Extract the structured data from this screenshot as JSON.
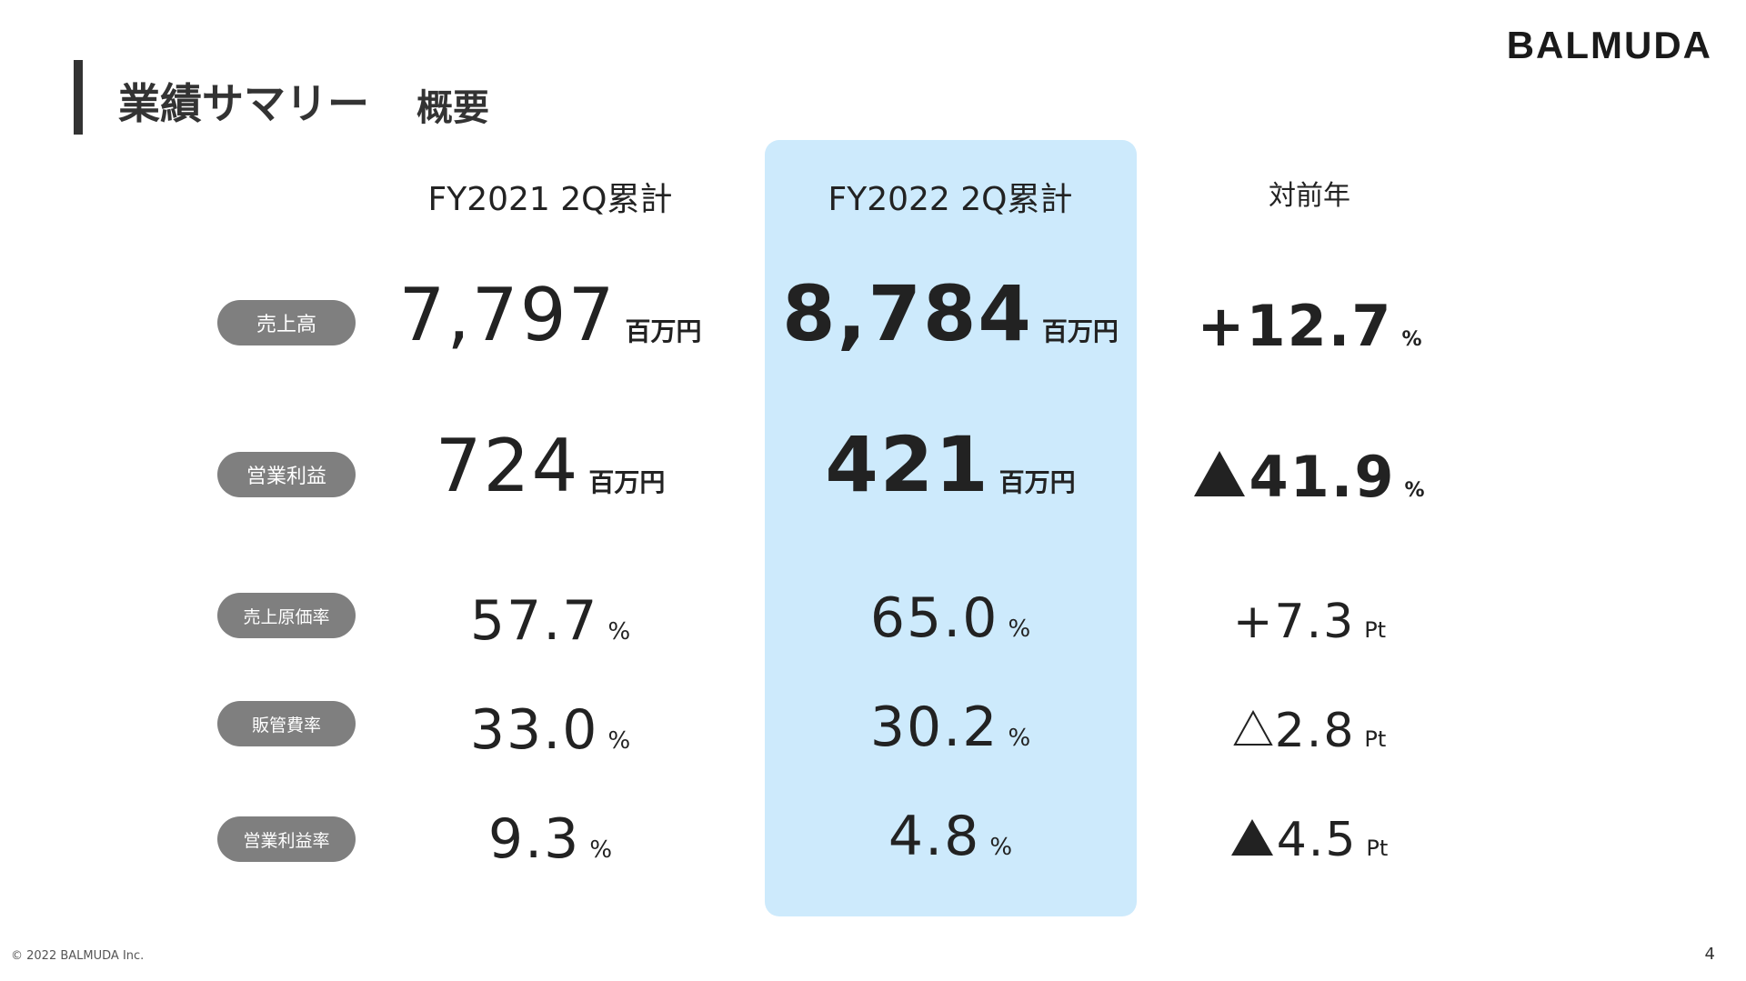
{
  "brand": "BALMUDA",
  "header": {
    "title": "業績サマリー",
    "subtitle": "概要"
  },
  "columns": {
    "prev": "FY2021 2Q累計",
    "curr": "FY2022 2Q累計",
    "yoy": "対前年"
  },
  "rows": [
    {
      "label": "売上高",
      "prev": "7,797",
      "prev_unit": "百万円",
      "curr": "8,784",
      "curr_unit": "百万円",
      "yoy_sign": "+",
      "yoy": "12.7",
      "yoy_unit": "%"
    },
    {
      "label": "営業利益",
      "prev": "724",
      "prev_unit": "百万円",
      "curr": "421",
      "curr_unit": "百万円",
      "yoy_sign": "▲",
      "yoy": "41.9",
      "yoy_unit": "%"
    },
    {
      "label": "売上原価率",
      "prev": "57.7",
      "prev_unit": "%",
      "curr": "65.0",
      "curr_unit": "%",
      "yoy_sign": "+",
      "yoy": "7.3",
      "yoy_unit": "Pt"
    },
    {
      "label": "販管費率",
      "prev": "33.0",
      "prev_unit": "%",
      "curr": "30.2",
      "curr_unit": "%",
      "yoy_sign": "△",
      "yoy": "2.8",
      "yoy_unit": "Pt"
    },
    {
      "label": "営業利益率",
      "prev": "9.3",
      "prev_unit": "%",
      "curr": "4.8",
      "curr_unit": "%",
      "yoy_sign": "▲",
      "yoy": "4.5",
      "yoy_unit": "Pt"
    }
  ],
  "footer": {
    "copyright": "© 2022 BALMUDA Inc.",
    "page": "4"
  },
  "colors": {
    "highlight": "#cdeafc",
    "pill": "#7f7f7f",
    "text": "#222222"
  }
}
